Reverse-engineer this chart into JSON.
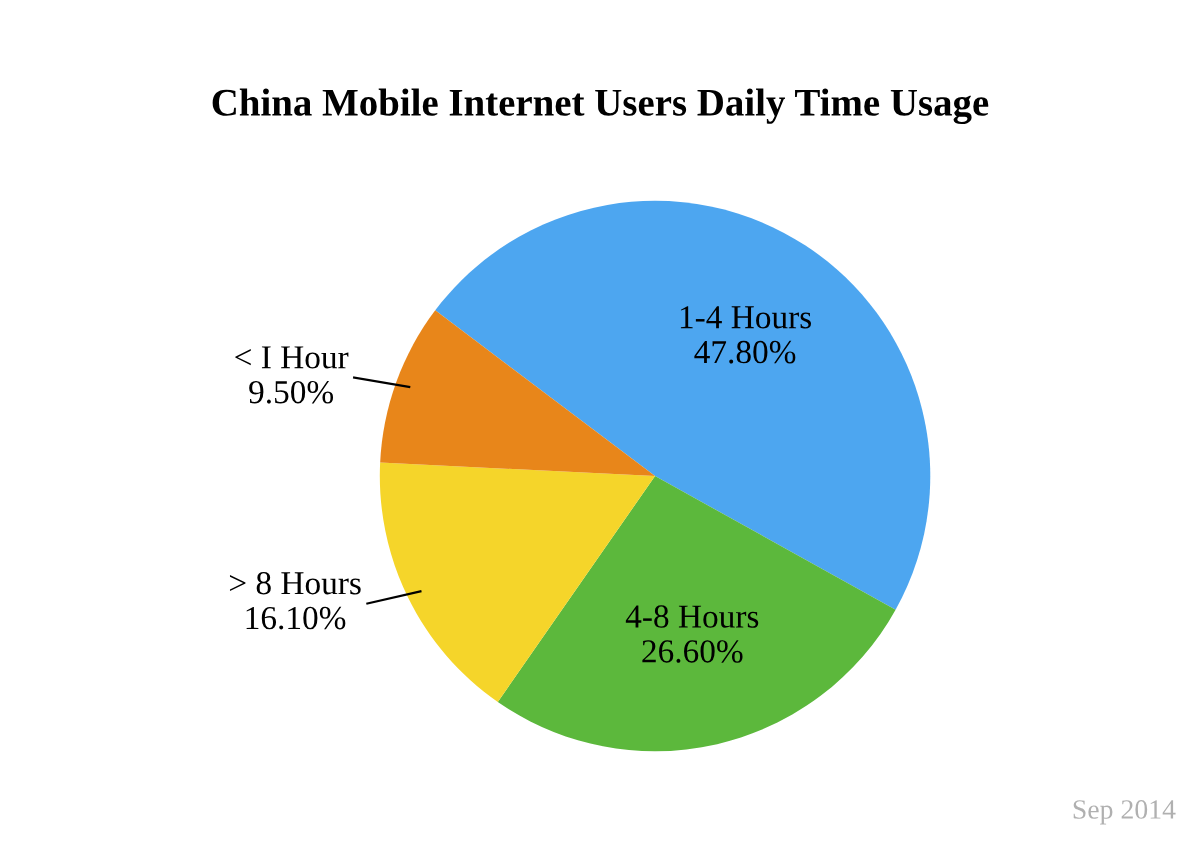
{
  "chart_data": {
    "type": "pie",
    "title": "China Mobile Internet Users Daily Time Usage",
    "categories": [
      "1-4 Hours",
      "4-8 Hours",
      "> 8 Hours",
      "< I Hour"
    ],
    "values": [
      47.8,
      26.6,
      16.1,
      9.5
    ],
    "value_labels": [
      "47.80%",
      "26.60%",
      "16.10%",
      "9.50%"
    ],
    "colors": [
      "#4da6f0",
      "#5cb83c",
      "#f5d52a",
      "#e8861a"
    ],
    "annotations": [
      "Sep 2014"
    ]
  }
}
